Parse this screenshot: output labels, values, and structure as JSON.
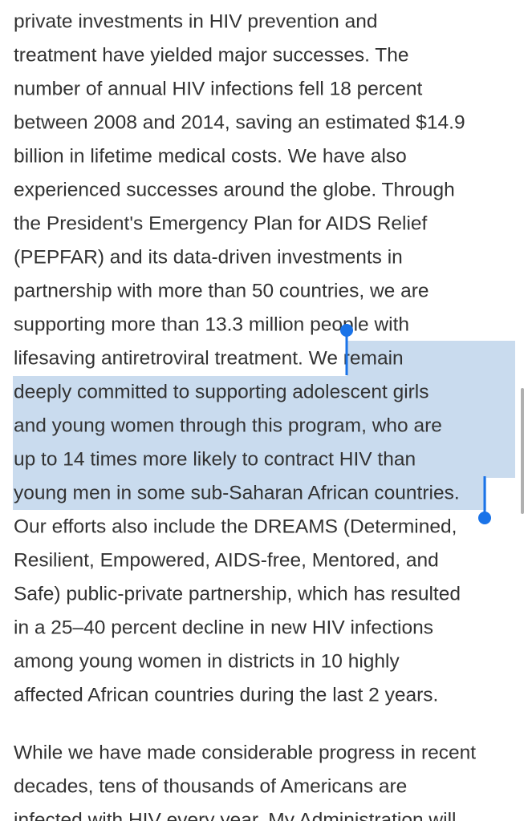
{
  "paragraphs": [
    {
      "lines": [
        "private investments in HIV prevention and",
        "treatment have yielded major successes. The",
        "number of annual HIV infections fell 18 percent",
        "between 2008 and 2014, saving an estimated $14.9",
        "billion in lifetime medical costs. We have also",
        "experienced successes around the globe. Through",
        "the President's Emergency Plan for AIDS Relief",
        "(PEPFAR) and its data-driven investments in",
        "partnership with more than 50 countries, we are",
        "supporting more than 13.3 million people with",
        "lifesaving antiretroviral treatment. We remain",
        "deeply committed to supporting adolescent girls",
        "and young women through this program, who are",
        "up to 14 times more likely to contract HIV than",
        "young men in some sub-Saharan African countries.",
        "Our efforts also include the DREAMS (Determined,",
        "Resilient, Empowered, AIDS-free, Mentored, and",
        "Safe) public-private partnership, which has resulted",
        "in a 25–40 percent decline in new HIV infections",
        "among young women in districts in 10 highly",
        "affected African countries during the last 2 years."
      ]
    },
    {
      "lines": [
        "While we have made considerable progress in recent",
        "decades, tens of thousands of Americans are",
        "infected with HIV every year. My Administration will"
      ]
    }
  ]
}
